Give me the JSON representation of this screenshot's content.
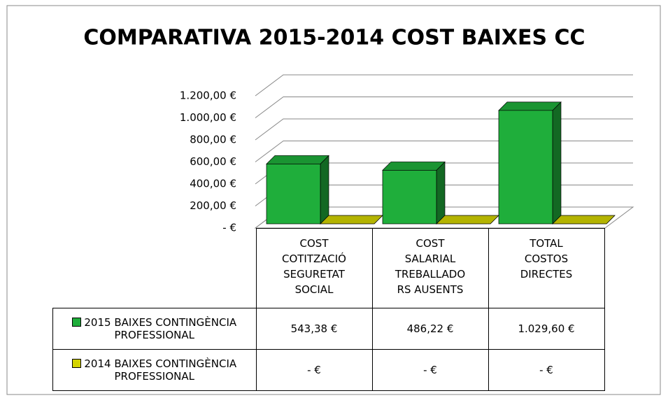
{
  "chart_data": {
    "type": "bar3d",
    "title": "COMPARATIVA 2015-2014   COST BAIXES CC",
    "categories": [
      "COST\nCOTITZACIÓ\nSEGURETAT\nSOCIAL",
      "COST\nSALARIAL\nTREBALLADO\nRS AUSENTS",
      "TOTAL\nCOSTOS\nDIRECTES"
    ],
    "series": [
      {
        "name": "2015 BAIXES CONTINGÈNCIA PROFESSIONAL",
        "color": "#1fae3b",
        "values": [
          543.38,
          486.22,
          1029.6
        ],
        "value_labels": [
          "543,38 €",
          "486,22 €",
          "1.029,60 €"
        ]
      },
      {
        "name": "2014 BAIXES CONTINGÈNCIA PROFESSIONAL",
        "color": "#d4d400",
        "values": [
          0,
          0,
          0
        ],
        "value_labels": [
          "-  €",
          "-  €",
          "-  €"
        ]
      }
    ],
    "ylim": [
      0,
      1200
    ],
    "yticks": [
      {
        "value": 0,
        "label": "-  €"
      },
      {
        "value": 200,
        "label": "200,00 €"
      },
      {
        "value": 400,
        "label": "400,00 €"
      },
      {
        "value": 600,
        "label": "600,00 €"
      },
      {
        "value": 800,
        "label": "800,00 €"
      },
      {
        "value": 1000,
        "label": "1.000,00 €"
      },
      {
        "value": 1200,
        "label": "1.200,00 €"
      }
    ],
    "grid": true
  }
}
